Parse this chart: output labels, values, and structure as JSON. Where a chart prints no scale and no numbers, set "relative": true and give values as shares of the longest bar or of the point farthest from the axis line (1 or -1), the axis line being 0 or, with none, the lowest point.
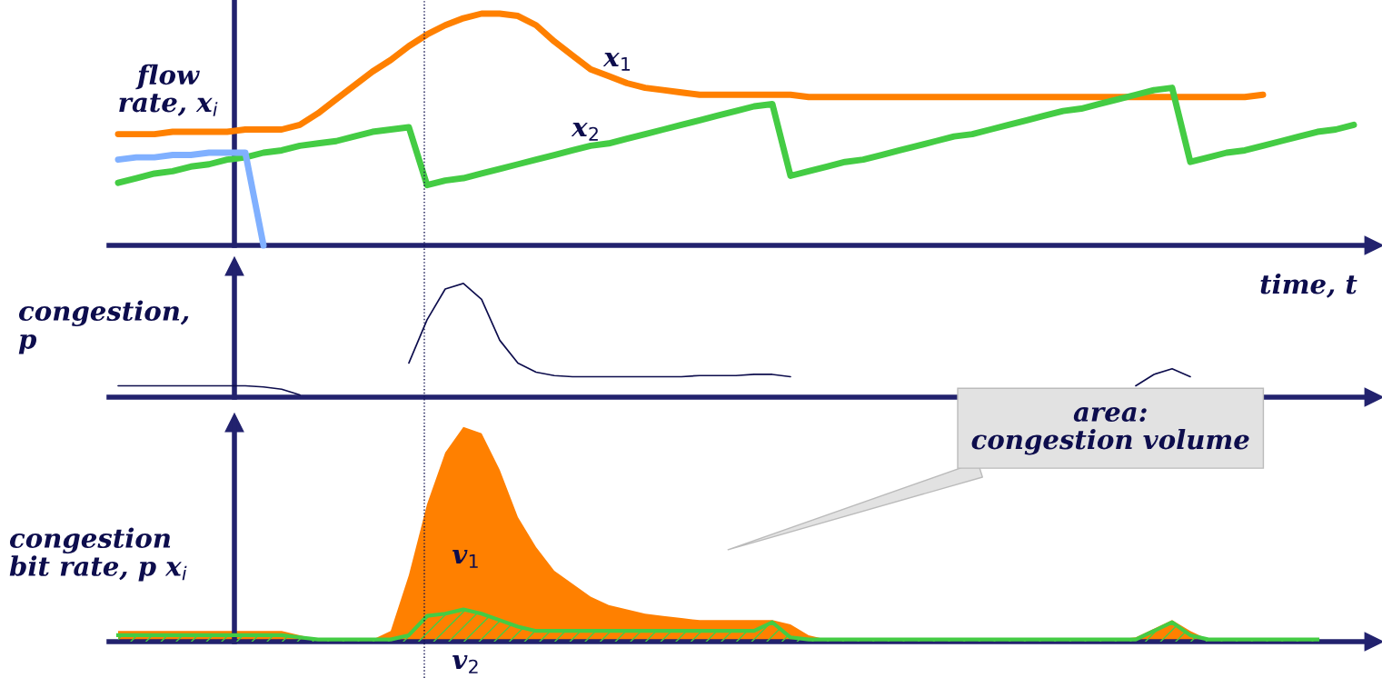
{
  "chart_data": [
    {
      "type": "line",
      "relative": true,
      "ylabel": "flow\nrate, x$_{i}$",
      "xlabel": "time, t",
      "categories": [
        null,
        null,
        null,
        null,
        null,
        null,
        null,
        null,
        null,
        null,
        null,
        null,
        null,
        null,
        null,
        null,
        null,
        null,
        null,
        null,
        null,
        null,
        null,
        null,
        null,
        null,
        null,
        null,
        null,
        null,
        null,
        null,
        null,
        null,
        null,
        null,
        null,
        null,
        null,
        null,
        null,
        null,
        null,
        null,
        null,
        null,
        null,
        null,
        null,
        null,
        null,
        null,
        null,
        null,
        null,
        null,
        null,
        null,
        null,
        null,
        null,
        null,
        null,
        null,
        null,
        null,
        null,
        null,
        null
      ],
      "series": [
        {
          "name": "x$_{1}$",
          "color": "#ff8000",
          "values": [
            0.48,
            0.48,
            0.48,
            0.49,
            0.49,
            0.49,
            0.49,
            0.5,
            0.5,
            0.5,
            0.52,
            0.57,
            0.63,
            0.69,
            0.75,
            0.8,
            0.86,
            0.91,
            0.95,
            0.98,
            1.0,
            1.0,
            0.99,
            0.95,
            0.88,
            0.82,
            0.76,
            0.73,
            0.7,
            0.68,
            0.67,
            0.66,
            0.65,
            0.65,
            0.65,
            0.65,
            0.65,
            0.65,
            0.64,
            0.64,
            0.64,
            0.64,
            0.64,
            0.64,
            0.64,
            0.64,
            0.64,
            0.64,
            0.64,
            0.64,
            0.64,
            0.64,
            0.64,
            0.64,
            0.64,
            0.64,
            0.64,
            0.64,
            0.64,
            0.64,
            0.64,
            0.64,
            0.64,
            0.65,
            null,
            null,
            null,
            null,
            null
          ]
        },
        {
          "name": "x$_{2}$",
          "color": "#44cc44",
          "values": [
            0.27,
            0.29,
            0.31,
            0.32,
            0.34,
            0.35,
            0.37,
            0.38,
            0.4,
            0.41,
            0.43,
            0.44,
            0.45,
            0.47,
            0.49,
            0.5,
            0.51,
            0.26,
            0.28,
            0.29,
            0.31,
            0.33,
            0.35,
            0.37,
            0.39,
            0.41,
            0.43,
            0.44,
            0.46,
            0.48,
            0.5,
            0.52,
            0.54,
            0.56,
            0.58,
            0.6,
            0.61,
            0.3,
            0.32,
            0.34,
            0.36,
            0.37,
            0.39,
            0.41,
            0.43,
            0.45,
            0.47,
            0.48,
            0.5,
            0.52,
            0.54,
            0.56,
            0.58,
            0.59,
            0.61,
            0.63,
            0.65,
            0.67,
            0.68,
            0.36,
            0.38,
            0.4,
            0.41,
            0.43,
            0.45,
            0.47,
            0.49,
            0.5,
            0.52
          ]
        },
        {
          "color": "#80b0ff",
          "values": [
            0.37,
            0.38,
            0.38,
            0.39,
            0.39,
            0.4,
            0.4,
            0.4,
            0,
            null,
            null,
            null,
            null,
            null,
            null,
            null,
            null,
            null,
            null,
            null,
            null,
            null,
            null,
            null,
            null,
            null,
            null,
            null,
            null,
            null,
            null,
            null,
            null,
            null,
            null,
            null,
            null,
            null,
            null,
            null,
            null,
            null,
            null,
            null,
            null,
            null,
            null,
            null,
            null,
            null,
            null,
            null,
            null,
            null,
            null,
            null,
            null,
            null,
            null,
            null,
            null,
            null,
            null,
            null,
            null,
            null,
            null,
            null,
            null
          ]
        }
      ],
      "grid": false
    },
    {
      "type": "line",
      "relative": true,
      "ylabel": "congestion,\np",
      "categories": [
        null,
        null,
        null,
        null,
        null,
        null,
        null,
        null,
        null,
        null,
        null,
        null,
        null,
        null,
        null,
        null,
        null,
        null,
        null,
        null,
        null,
        null,
        null,
        null,
        null,
        null,
        null,
        null,
        null,
        null,
        null,
        null,
        null,
        null,
        null,
        null,
        null,
        null,
        null,
        null,
        null,
        null,
        null,
        null,
        null,
        null,
        null,
        null,
        null,
        null,
        null,
        null,
        null,
        null,
        null,
        null,
        null,
        null,
        null,
        null,
        null,
        null,
        null,
        null,
        null,
        null,
        null,
        null,
        null
      ],
      "series": [
        {
          "color": "#0d0d4d",
          "values": [
            0.1,
            0.1,
            0.1,
            0.1,
            0.1,
            0.1,
            0.1,
            0.1,
            0.09,
            0.07,
            0.02,
            null,
            null,
            null,
            null,
            null,
            0.3,
            0.68,
            0.95,
            1.0,
            0.86,
            0.5,
            0.3,
            0.22,
            0.19,
            0.18,
            0.18,
            0.18,
            0.18,
            0.18,
            0.18,
            0.18,
            0.19,
            0.19,
            0.19,
            0.2,
            0.2,
            0.18,
            null,
            null,
            null,
            null,
            null,
            null,
            null,
            null,
            null,
            null,
            null,
            null,
            null,
            null,
            null,
            null,
            null,
            null,
            0.1,
            0.2,
            0.25,
            0.18,
            null,
            null,
            null,
            null,
            null,
            null,
            null,
            null,
            null
          ]
        }
      ]
    },
    {
      "type": "area",
      "relative": true,
      "ylabel": "congestion\nbit rate, p x$_{i}$",
      "annotations": [
        "area:\ncongestion volume"
      ],
      "categories": [
        null,
        null,
        null,
        null,
        null,
        null,
        null,
        null,
        null,
        null,
        null,
        null,
        null,
        null,
        null,
        null,
        null,
        null,
        null,
        null,
        null,
        null,
        null,
        null,
        null,
        null,
        null,
        null,
        null,
        null,
        null,
        null,
        null,
        null,
        null,
        null,
        null,
        null,
        null,
        null,
        null,
        null,
        null,
        null,
        null,
        null,
        null,
        null,
        null,
        null,
        null,
        null,
        null,
        null,
        null,
        null,
        null,
        null,
        null,
        null,
        null,
        null,
        null,
        null,
        null,
        null,
        null,
        null,
        null
      ],
      "series": [
        {
          "name": "v$_{1}$",
          "color": "#ff8000",
          "values": [
            0.05,
            0.05,
            0.05,
            0.05,
            0.05,
            0.05,
            0.05,
            0.05,
            0.05,
            0.05,
            0.03,
            0.01,
            0.01,
            0.01,
            0.01,
            0.05,
            0.31,
            0.64,
            0.88,
            1.0,
            0.97,
            0.8,
            0.58,
            0.44,
            0.33,
            0.27,
            0.21,
            0.17,
            0.15,
            0.13,
            0.12,
            0.11,
            0.1,
            0.1,
            0.1,
            0.1,
            0.1,
            0.08,
            0.03,
            0.01,
            0.01,
            0.01,
            0.01,
            0.01,
            0.01,
            0.01,
            0.01,
            0.01,
            0.01,
            0.01,
            0.01,
            0.01,
            0.01,
            0.01,
            0.01,
            0.01,
            0.02,
            0.06,
            0.1,
            0.05,
            0.01,
            0.01,
            0.01,
            0.01,
            0.01,
            0.01,
            0.01,
            null,
            null
          ]
        },
        {
          "name": "v$_{2}$",
          "color": "#44cc44",
          "values": [
            0.03,
            0.03,
            0.03,
            0.03,
            0.03,
            0.03,
            0.03,
            0.03,
            0.03,
            0.03,
            0.02,
            0.01,
            0.01,
            0.01,
            0.01,
            0.01,
            0.03,
            0.12,
            0.13,
            0.15,
            0.13,
            0.1,
            0.07,
            0.05,
            0.05,
            0.05,
            0.05,
            0.05,
            0.05,
            0.05,
            0.05,
            0.05,
            0.05,
            0.05,
            0.05,
            0.05,
            0.09,
            0.02,
            0.01,
            0.01,
            0.01,
            0.01,
            0.01,
            0.01,
            0.01,
            0.01,
            0.01,
            0.01,
            0.01,
            0.01,
            0.01,
            0.01,
            0.01,
            0.01,
            0.01,
            0.01,
            0.01,
            0.05,
            0.09,
            0.03,
            0.01,
            0.01,
            0.01,
            0.01,
            0.01,
            0.01,
            0.01,
            null,
            null
          ]
        }
      ]
    }
  ]
}
